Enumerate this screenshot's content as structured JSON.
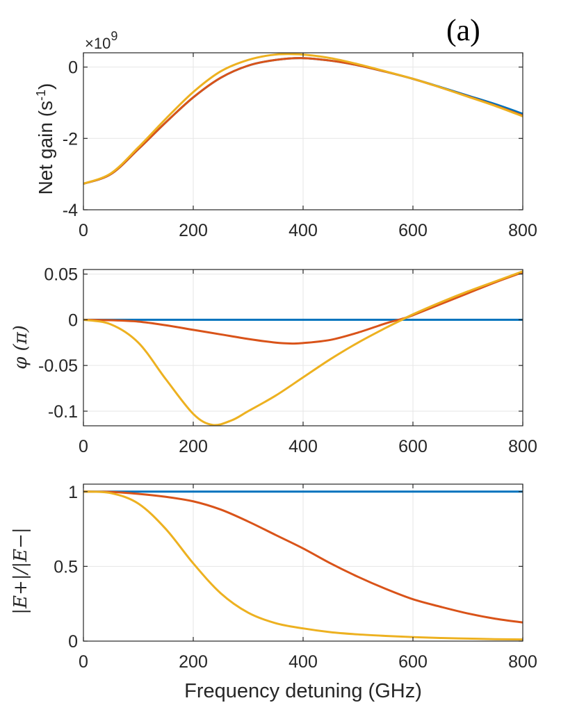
{
  "panel_label": "(a)",
  "chart_data": [
    {
      "type": "line",
      "id": "gain",
      "exponent_label": "×10",
      "exponent_power": "9",
      "ylabel": "Net gain (s",
      "ylabel_sup": "-1",
      "ylabel_close": ")",
      "xlim": [
        0,
        800
      ],
      "ylim": [
        -4,
        0.4
      ],
      "xticks": [
        0,
        200,
        400,
        600,
        800
      ],
      "xtick_labels": [
        "0",
        "200",
        "400",
        "600",
        "800"
      ],
      "yticks": [
        -4,
        -2,
        0
      ],
      "ytick_labels": [
        "-4",
        "-2",
        "0"
      ],
      "series": [
        {
          "name": "blue",
          "color": "#0072BD",
          "x": [
            0,
            50,
            100,
            150,
            200,
            250,
            300,
            350,
            400,
            450,
            500,
            550,
            600,
            650,
            700,
            750,
            800
          ],
          "y": [
            -3.27,
            -3.0,
            -2.3,
            -1.55,
            -0.85,
            -0.3,
            0.04,
            0.2,
            0.25,
            0.18,
            0.05,
            -0.13,
            -0.33,
            -0.56,
            -0.8,
            -1.04,
            -1.31
          ]
        },
        {
          "name": "orange",
          "color": "#D95319",
          "x": [
            0,
            50,
            100,
            150,
            200,
            250,
            300,
            350,
            400,
            450,
            500,
            550,
            600,
            650,
            700,
            750,
            800
          ],
          "y": [
            -3.27,
            -3.0,
            -2.3,
            -1.55,
            -0.85,
            -0.3,
            0.04,
            0.2,
            0.25,
            0.18,
            0.05,
            -0.13,
            -0.33,
            -0.57,
            -0.82,
            -1.08,
            -1.36
          ]
        },
        {
          "name": "yellow",
          "color": "#EDB120",
          "x": [
            0,
            50,
            100,
            150,
            200,
            250,
            300,
            350,
            400,
            450,
            500,
            550,
            600,
            650,
            700,
            750,
            800
          ],
          "y": [
            -3.27,
            -2.98,
            -2.25,
            -1.45,
            -0.7,
            -0.12,
            0.2,
            0.35,
            0.35,
            0.25,
            0.08,
            -0.12,
            -0.33,
            -0.57,
            -0.83,
            -1.09,
            -1.38
          ]
        }
      ]
    },
    {
      "type": "line",
      "id": "phase",
      "ylabel": "φ (π)",
      "xlim": [
        0,
        800
      ],
      "ylim": [
        -0.116,
        0.055
      ],
      "xticks": [
        0,
        200,
        400,
        600,
        800
      ],
      "xtick_labels": [
        "0",
        "200",
        "400",
        "600",
        "800"
      ],
      "yticks": [
        -0.1,
        -0.05,
        0,
        0.05
      ],
      "ytick_labels": [
        "-0.1",
        "-0.05",
        "0",
        "0.05"
      ],
      "series": [
        {
          "name": "blue",
          "color": "#0072BD",
          "x": [
            0,
            800
          ],
          "y": [
            0,
            0
          ]
        },
        {
          "name": "orange",
          "color": "#D95319",
          "x": [
            0,
            50,
            100,
            150,
            200,
            250,
            300,
            350,
            380,
            400,
            450,
            500,
            550,
            580,
            600,
            650,
            700,
            750,
            800
          ],
          "y": [
            0,
            -0.0005,
            -0.002,
            -0.006,
            -0.011,
            -0.016,
            -0.021,
            -0.025,
            -0.026,
            -0.0255,
            -0.022,
            -0.014,
            -0.004,
            0.001,
            0.005,
            0.017,
            0.029,
            0.041,
            0.052
          ]
        },
        {
          "name": "yellow",
          "color": "#EDB120",
          "x": [
            0,
            50,
            100,
            150,
            200,
            235,
            270,
            300,
            350,
            400,
            450,
            500,
            550,
            580,
            600,
            650,
            700,
            750,
            800
          ],
          "y": [
            0,
            -0.005,
            -0.025,
            -0.065,
            -0.103,
            -0.115,
            -0.11,
            -0.1,
            -0.083,
            -0.063,
            -0.043,
            -0.025,
            -0.009,
            0.0,
            0.006,
            0.019,
            0.031,
            0.042,
            0.053
          ]
        }
      ]
    },
    {
      "type": "line",
      "id": "ratio",
      "ylabel": "|E+|/|E−|",
      "xlabel": "Frequency detuning (GHz)",
      "xlim": [
        0,
        800
      ],
      "ylim": [
        0,
        1.05
      ],
      "xticks": [
        0,
        200,
        400,
        600,
        800
      ],
      "xtick_labels": [
        "0",
        "200",
        "400",
        "600",
        "800"
      ],
      "yticks": [
        0,
        0.5,
        1
      ],
      "ytick_labels": [
        "0",
        "0.5",
        "1"
      ],
      "series": [
        {
          "name": "blue",
          "color": "#0072BD",
          "x": [
            0,
            800
          ],
          "y": [
            1,
            1
          ]
        },
        {
          "name": "orange",
          "color": "#D95319",
          "x": [
            0,
            50,
            100,
            150,
            200,
            250,
            300,
            350,
            400,
            450,
            500,
            550,
            600,
            650,
            700,
            750,
            800
          ],
          "y": [
            1,
            0.998,
            0.985,
            0.965,
            0.935,
            0.88,
            0.8,
            0.71,
            0.62,
            0.52,
            0.43,
            0.35,
            0.28,
            0.23,
            0.185,
            0.15,
            0.125
          ]
        },
        {
          "name": "yellow",
          "color": "#EDB120",
          "x": [
            0,
            50,
            100,
            150,
            200,
            250,
            300,
            350,
            400,
            450,
            500,
            550,
            600,
            650,
            700,
            750,
            800
          ],
          "y": [
            1,
            0.99,
            0.92,
            0.75,
            0.52,
            0.32,
            0.19,
            0.12,
            0.085,
            0.06,
            0.045,
            0.035,
            0.027,
            0.021,
            0.017,
            0.013,
            0.011
          ]
        }
      ]
    }
  ]
}
